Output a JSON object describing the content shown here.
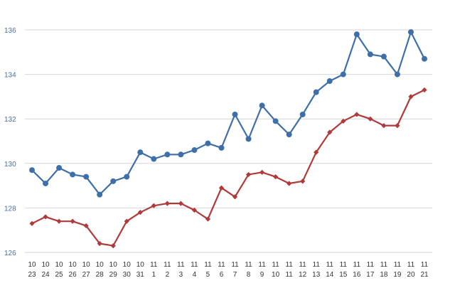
{
  "chart_data": {
    "type": "line",
    "categories": [
      [
        "10",
        "23"
      ],
      [
        "10",
        "24"
      ],
      [
        "10",
        "25"
      ],
      [
        "10",
        "26"
      ],
      [
        "10",
        "27"
      ],
      [
        "10",
        "28"
      ],
      [
        "10",
        "29"
      ],
      [
        "10",
        "30"
      ],
      [
        "10",
        "31"
      ],
      [
        "11",
        "1"
      ],
      [
        "11",
        "2"
      ],
      [
        "11",
        "3"
      ],
      [
        "11",
        "4"
      ],
      [
        "11",
        "5"
      ],
      [
        "11",
        "6"
      ],
      [
        "11",
        "7"
      ],
      [
        "11",
        "8"
      ],
      [
        "11",
        "9"
      ],
      [
        "11",
        "10"
      ],
      [
        "11",
        "11"
      ],
      [
        "11",
        "12"
      ],
      [
        "11",
        "13"
      ],
      [
        "11",
        "14"
      ],
      [
        "11",
        "15"
      ],
      [
        "11",
        "16"
      ],
      [
        "11",
        "17"
      ],
      [
        "11",
        "18"
      ],
      [
        "11",
        "19"
      ],
      [
        "11",
        "20"
      ],
      [
        "11",
        "21"
      ]
    ],
    "series": [
      {
        "color": "#3e6fa8",
        "marker": "circle",
        "values": [
          129.7,
          129.1,
          129.8,
          129.5,
          129.4,
          128.6,
          129.2,
          129.4,
          130.5,
          130.2,
          130.4,
          130.4,
          130.6,
          130.9,
          130.7,
          132.2,
          131.1,
          132.6,
          131.9,
          131.3,
          132.2,
          133.2,
          133.7,
          134.0,
          135.8,
          134.9,
          134.8,
          134.0,
          135.9,
          134.7
        ]
      },
      {
        "color": "#b03a3a",
        "marker": "diamond",
        "values": [
          127.3,
          127.6,
          127.4,
          127.4,
          127.2,
          126.4,
          126.3,
          127.4,
          127.8,
          128.1,
          128.2,
          128.2,
          127.9,
          127.5,
          128.9,
          128.5,
          129.5,
          129.6,
          129.4,
          129.1,
          129.2,
          130.5,
          131.4,
          131.9,
          132.2,
          132.0,
          131.7,
          131.7,
          133.0,
          133.3
        ]
      }
    ],
    "yticks": [
      "126",
      "128",
      "130",
      "132",
      "134",
      "136"
    ],
    "ylim": [
      126,
      136
    ],
    "title": "",
    "xlabel": "",
    "ylabel": "",
    "grid": true,
    "legend": "none"
  }
}
